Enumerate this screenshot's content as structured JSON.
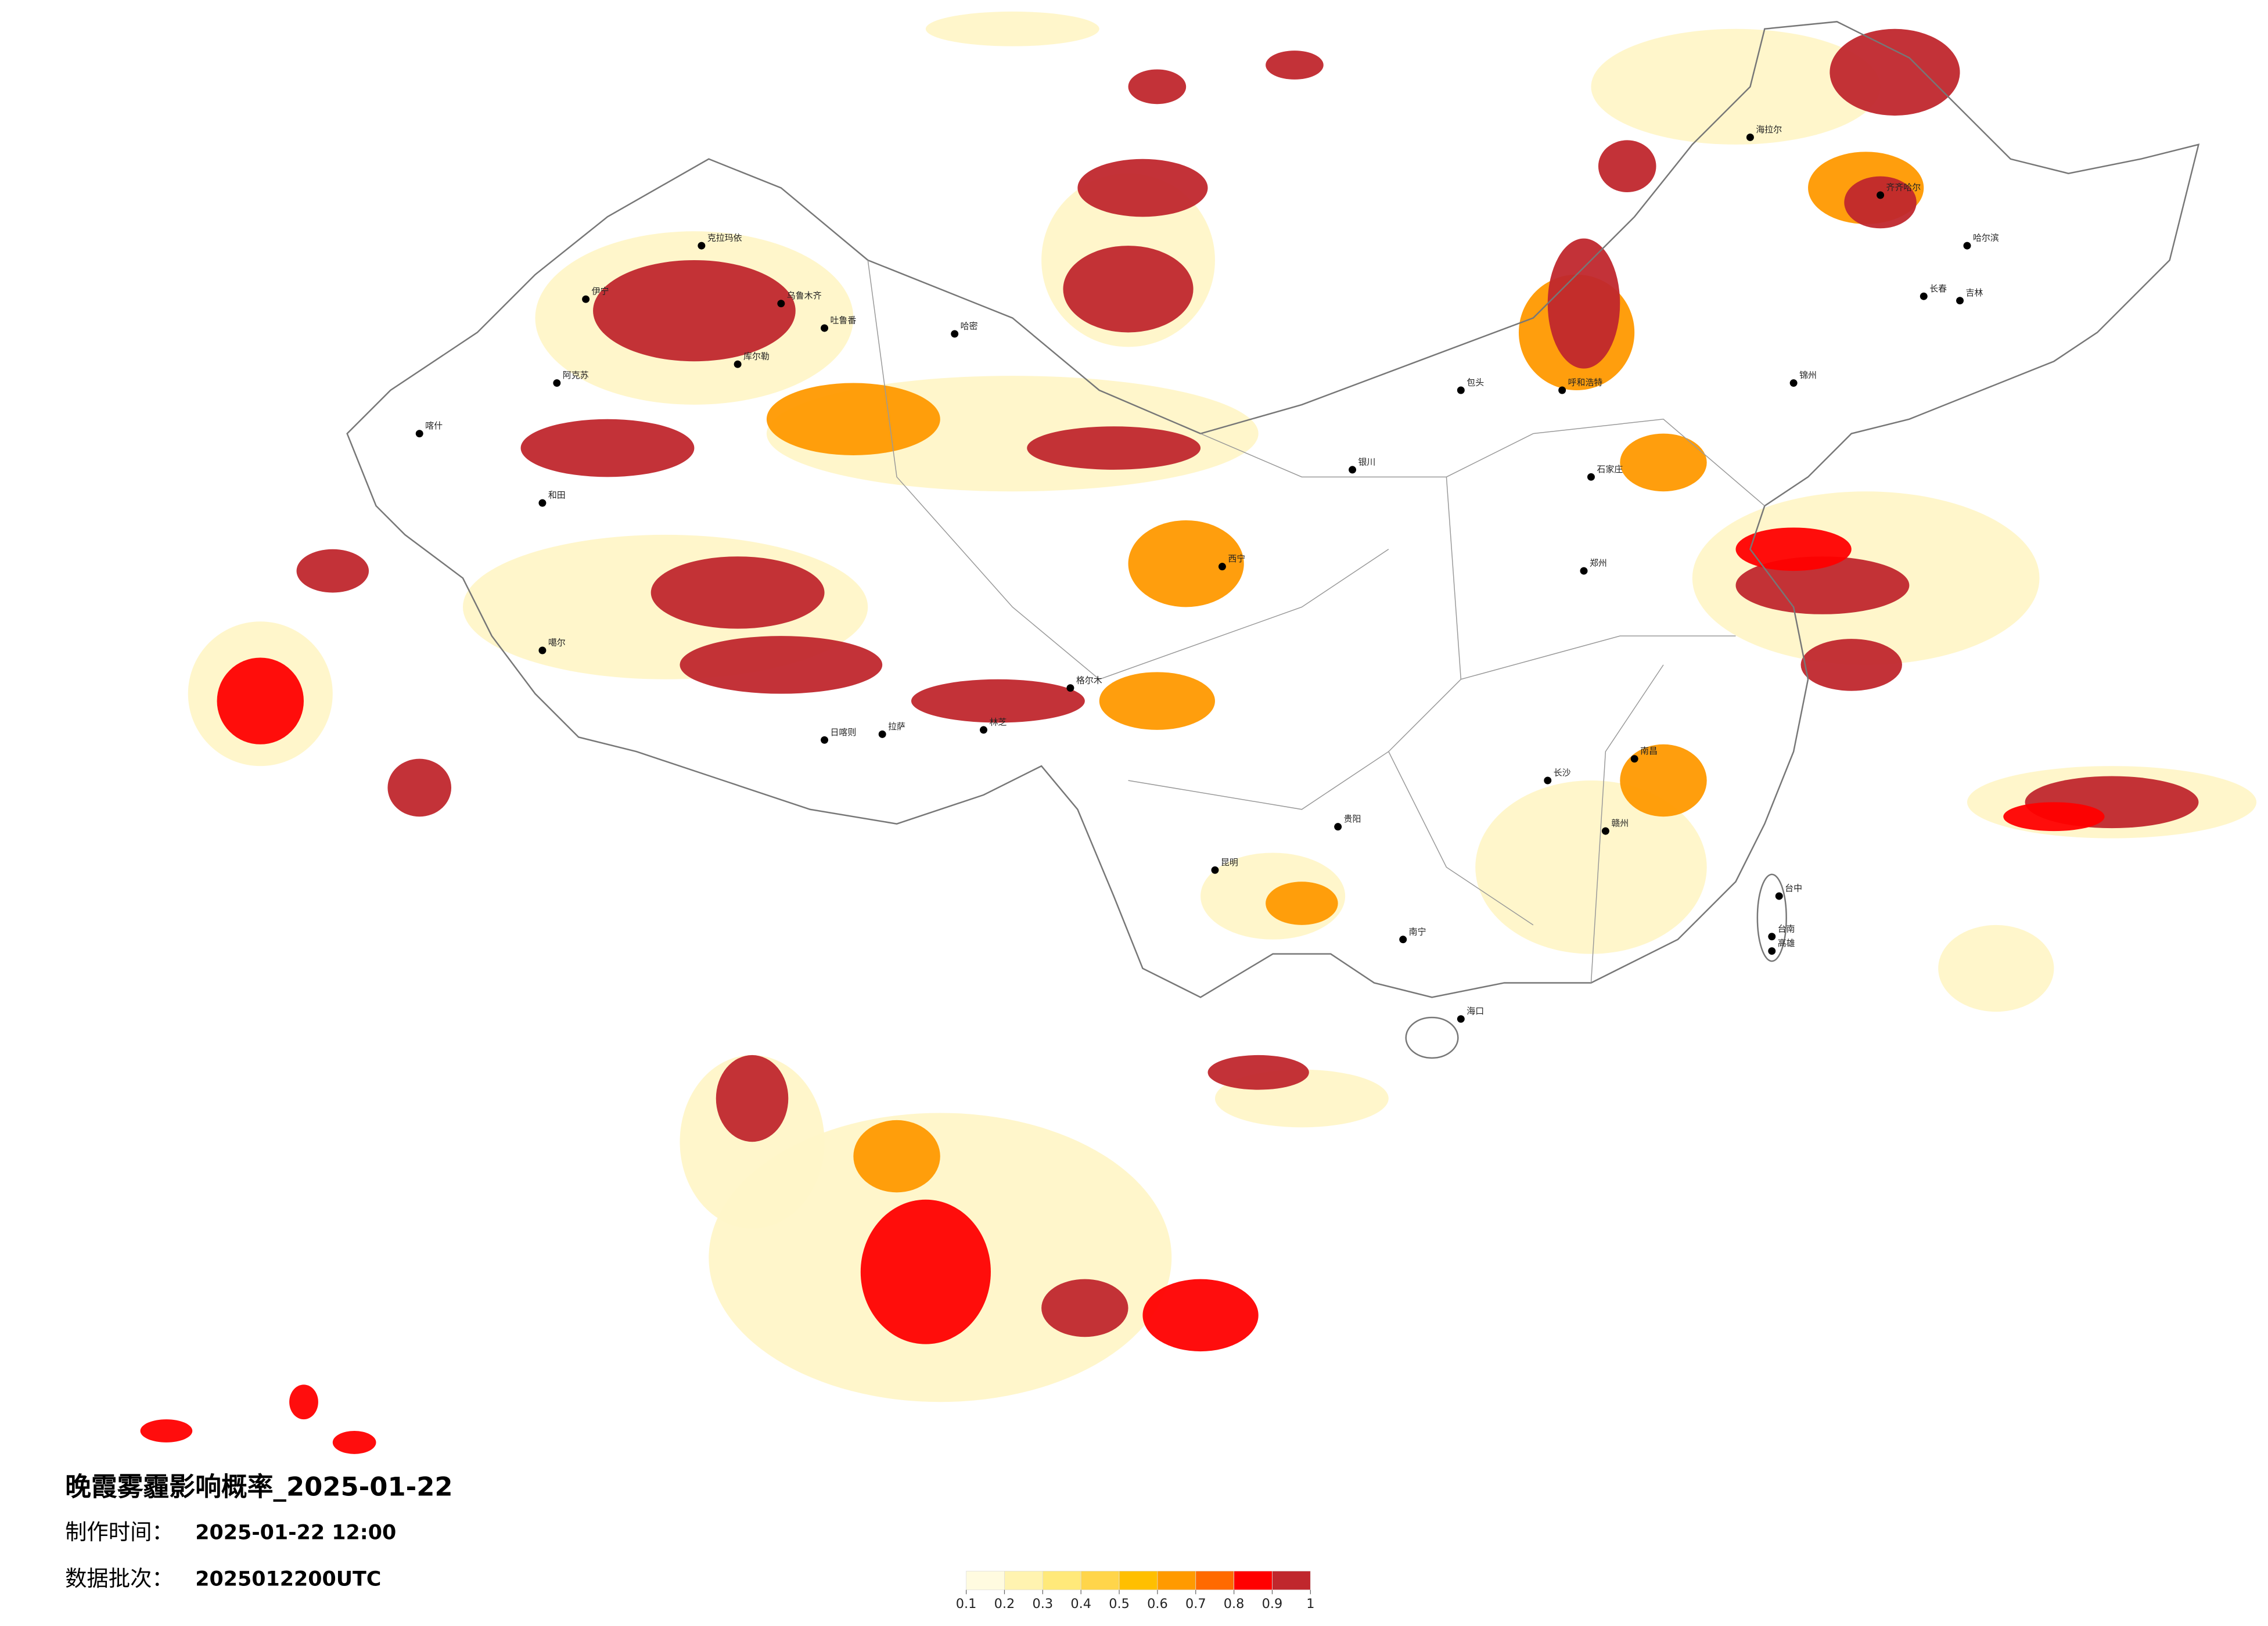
{
  "title": "晚霞雾霾影响概率_2025-01-22",
  "production_time": {
    "label": "制作时间：",
    "value": "2025-01-22 12:00"
  },
  "batch": {
    "label": "数据批次：",
    "value": "2025012200UTC"
  },
  "legend": {
    "ticks": [
      0.1,
      0.2,
      0.3,
      0.4,
      0.5,
      0.6,
      0.7,
      0.8,
      0.9,
      1
    ],
    "colors": [
      "#fffbe0",
      "#fff3b0",
      "#ffe97a",
      "#ffd54a",
      "#ffbf00",
      "#ff9a00",
      "#ff6a00",
      "#ff0000",
      "#c0272d"
    ]
  },
  "cities": [
    "克拉玛依",
    "伊宁",
    "乌鲁木齐",
    "吐鲁番",
    "哈密",
    "阿克苏",
    "库尔勒",
    "喀什",
    "和田",
    "噶尔",
    "日喀则",
    "拉萨",
    "林芝",
    "格尔木",
    "西宁",
    "银川",
    "包头",
    "呼和浩特",
    "海拉尔",
    "齐齐哈尔",
    "哈尔滨",
    "长春",
    "吉林",
    "锦州",
    "石家庄",
    "郑州",
    "贵阳",
    "昆明",
    "南宁",
    "长沙",
    "南昌",
    "赣州",
    "海口",
    "台中",
    "台南",
    "高雄"
  ]
}
